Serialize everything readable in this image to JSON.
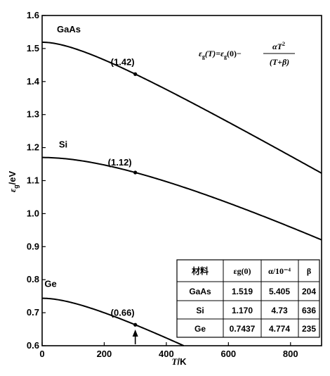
{
  "chart_data": {
    "type": "line",
    "xlabel_italic": "T",
    "xlabel_unit": "/K",
    "ylabel_symbol": "ε",
    "ylabel_sub": "g",
    "ylabel_unit": "/eV",
    "xlim": [
      0,
      900
    ],
    "ylim": [
      0.6,
      1.6
    ],
    "x_ticks": [
      "0",
      "200",
      "400",
      "600",
      "800"
    ],
    "y_ticks": [
      "0.6",
      "0.7",
      "0.8",
      "0.9",
      "1.0",
      "1.1",
      "1.2",
      "1.3",
      "1.4",
      "1.5",
      "1.6"
    ],
    "equation": {
      "lhs": "ε",
      "lhs_sub": "g",
      "lhs_arg": "(T)=",
      "rhs0": "ε",
      "rhs0_sub": "g",
      "rhs0_arg": "(0)−",
      "num": "αT",
      "num_sup": "2",
      "den": "(T+β)"
    },
    "series": [
      {
        "name": "GaAs",
        "Eg0": 1.519,
        "alpha_e4": 5.405,
        "beta": 204,
        "point_label": "(1.42)",
        "point_x": 300
      },
      {
        "name": "Si",
        "Eg0": 1.17,
        "alpha_e4": 4.73,
        "beta": 636,
        "point_label": "(1.12)",
        "point_x": 300
      },
      {
        "name": "Ge",
        "Eg0": 0.7437,
        "alpha_e4": 4.774,
        "beta": 235,
        "point_label": "(0.66)",
        "point_x": 300
      }
    ],
    "table": {
      "headers": [
        "材料",
        "εg(0)",
        "α/10⁻⁴",
        "β"
      ],
      "rows": [
        [
          "GaAs",
          "1.519",
          "5.405",
          "204"
        ],
        [
          "Si",
          "1.170",
          "4.73",
          "636"
        ],
        [
          "Ge",
          "0.7437",
          "4.774",
          "235"
        ]
      ]
    },
    "arrow_x": 300
  }
}
